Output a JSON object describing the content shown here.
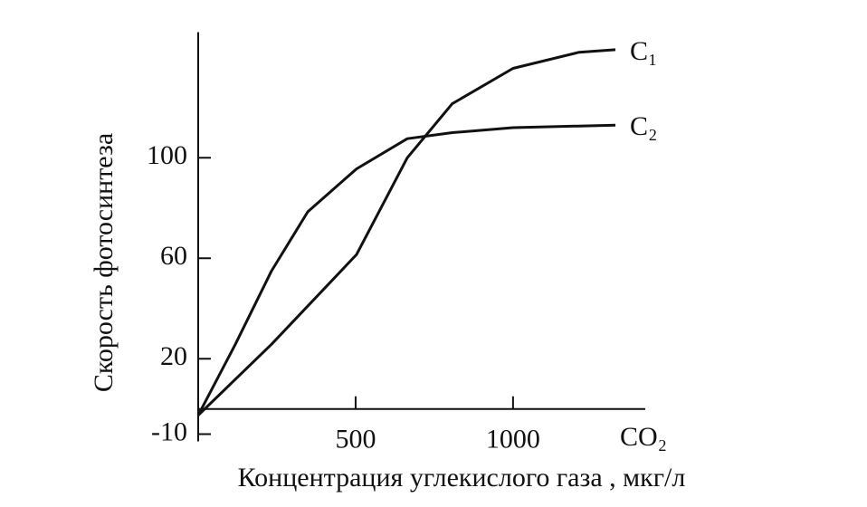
{
  "chart_data": {
    "type": "line",
    "y_label": "Скорость фотосинтеза",
    "x_label": "Концентрация углекислого газа , мкг/л",
    "x_axis_end_label": "CO₂",
    "xlim": [
      0,
      1420
    ],
    "xticks": [
      500,
      1000
    ],
    "ylim": [
      -10,
      150
    ],
    "yticks": [
      -10,
      20,
      60,
      100
    ],
    "series": [
      {
        "name": "C₁",
        "color": "#111111",
        "x": [
          0,
          233,
          503,
          664,
          807,
          1000,
          1210,
          1325
        ],
        "values": [
          -2.5,
          25.8,
          61.5,
          100,
          121.5,
          135.6,
          142,
          143
        ]
      },
      {
        "name": "C₂",
        "color": "#111111",
        "x": [
          0,
          118,
          233,
          348,
          503,
          664,
          807,
          1000,
          1325
        ],
        "values": [
          -2.5,
          25.8,
          55,
          78.5,
          95.6,
          107.6,
          110,
          112,
          113
        ]
      }
    ]
  }
}
